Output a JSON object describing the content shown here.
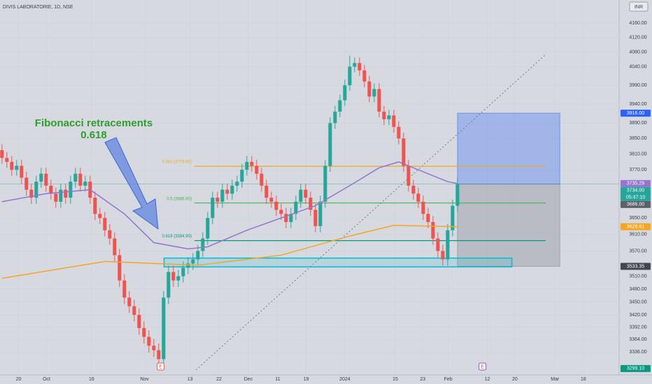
{
  "chart_data": {
    "type": "candlestick",
    "title": "DIVIS LABORATORIE, 1D, NSE",
    "currency": "INR",
    "annotation": [
      "Fibonacci retracements",
      "0.618"
    ],
    "annotation_color": "#2e9e2e",
    "up_color": "#26a69a",
    "down_color": "#ef5350",
    "log": true,
    "ylim": [
      3285,
      4225
    ],
    "xlim": [
      -0.4,
      126
    ],
    "yticks": [
      {
        "value": 4160,
        "label": "4160.00"
      },
      {
        "value": 4120,
        "label": "4120.00"
      },
      {
        "value": 4080,
        "label": "4080.00"
      },
      {
        "value": 4040,
        "label": "4040.00"
      },
      {
        "value": 3990,
        "label": "3990.00"
      },
      {
        "value": 3940,
        "label": "3940.00"
      },
      {
        "value": 3890,
        "label": "3890.00"
      },
      {
        "value": 3850,
        "label": "3850.00"
      },
      {
        "value": 3810,
        "label": "3810.00"
      },
      {
        "value": 3770,
        "label": "3770.00"
      },
      {
        "value": 3650,
        "label": "3650.00"
      },
      {
        "value": 3610,
        "label": "3610.00"
      },
      {
        "value": 3570,
        "label": "3570.00"
      },
      {
        "value": 3510,
        "label": "3510.00"
      },
      {
        "value": 3480,
        "label": "3480.00"
      },
      {
        "value": 3450,
        "label": "3450.00"
      },
      {
        "value": 3420,
        "label": "3420.00"
      },
      {
        "value": 3392,
        "label": "3392.00"
      },
      {
        "value": 3364,
        "label": "3364.00"
      },
      {
        "value": 3336,
        "label": "3336.00"
      }
    ],
    "xticks": [
      {
        "value": 3.4,
        "label": "20"
      },
      {
        "value": 9.1,
        "label": "Oct"
      },
      {
        "value": 18.3,
        "label": "16"
      },
      {
        "value": 29.1,
        "label": "Nov"
      },
      {
        "value": 38.4,
        "label": "13"
      },
      {
        "value": 44.3,
        "label": "22"
      },
      {
        "value": 50.3,
        "label": "Dec"
      },
      {
        "value": 56.3,
        "label": "11"
      },
      {
        "value": 62.1,
        "label": "19"
      },
      {
        "value": 70,
        "label": "2024"
      },
      {
        "value": 80.3,
        "label": "15"
      },
      {
        "value": 85.9,
        "label": "23"
      },
      {
        "value": 91.1,
        "label": "Feb"
      },
      {
        "value": 99.1,
        "label": "12"
      },
      {
        "value": 104.7,
        "label": "20"
      },
      {
        "value": 112.9,
        "label": "Mar"
      },
      {
        "value": 118.7,
        "label": "18"
      }
    ],
    "open": [
      3820,
      3800,
      3790,
      3770,
      3780,
      3750,
      3720,
      3700,
      3740,
      3760,
      3730,
      3710,
      3690,
      3720,
      3700,
      3740,
      3760,
      3730,
      3740,
      3700,
      3660,
      3650,
      3620,
      3600,
      3560,
      3500,
      3460,
      3440,
      3420,
      3390,
      3370,
      3350,
      3340,
      3320,
      3460,
      3520,
      3500,
      3510,
      3530,
      3540,
      3550,
      3570,
      3600,
      3650,
      3700,
      3690,
      3720,
      3710,
      3730,
      3740,
      3770,
      3790,
      3780,
      3760,
      3730,
      3700,
      3690,
      3670,
      3660,
      3640,
      3660,
      3690,
      3720,
      3700,
      3670,
      3630,
      3690,
      3780,
      3890,
      3920,
      3950,
      3990,
      4040,
      4050,
      4030,
      4000,
      3960,
      3980,
      3920,
      3900,
      3910,
      3880,
      3850,
      3780,
      3730,
      3710,
      3690,
      3660,
      3640,
      3600,
      3570,
      3550,
      3620,
      3680
    ],
    "high": [
      3835,
      3815,
      3805,
      3795,
      3795,
      3765,
      3735,
      3755,
      3775,
      3775,
      3745,
      3725,
      3735,
      3735,
      3755,
      3775,
      3775,
      3755,
      3755,
      3715,
      3675,
      3665,
      3635,
      3615,
      3575,
      3515,
      3475,
      3455,
      3435,
      3405,
      3385,
      3365,
      3355,
      3475,
      3535,
      3535,
      3525,
      3545,
      3555,
      3565,
      3585,
      3615,
      3665,
      3715,
      3715,
      3735,
      3735,
      3745,
      3755,
      3785,
      3805,
      3805,
      3795,
      3775,
      3745,
      3715,
      3705,
      3685,
      3675,
      3675,
      3705,
      3735,
      3735,
      3715,
      3685,
      3705,
      3795,
      3905,
      3935,
      3965,
      4005,
      4070,
      4065,
      4065,
      4045,
      4015,
      3995,
      3995,
      3935,
      3925,
      3925,
      3895,
      3865,
      3795,
      3745,
      3725,
      3705,
      3675,
      3655,
      3615,
      3585,
      3635,
      3695,
      3749
    ],
    "low": [
      3785,
      3775,
      3755,
      3755,
      3735,
      3705,
      3685,
      3685,
      3725,
      3715,
      3695,
      3675,
      3675,
      3685,
      3685,
      3725,
      3715,
      3715,
      3685,
      3645,
      3635,
      3605,
      3585,
      3545,
      3485,
      3445,
      3425,
      3405,
      3375,
      3355,
      3335,
      3325,
      3299,
      3305,
      3445,
      3485,
      3485,
      3495,
      3515,
      3525,
      3535,
      3555,
      3585,
      3635,
      3675,
      3675,
      3695,
      3695,
      3715,
      3725,
      3755,
      3765,
      3745,
      3715,
      3685,
      3675,
      3655,
      3645,
      3625,
      3625,
      3645,
      3675,
      3685,
      3655,
      3615,
      3615,
      3675,
      3765,
      3875,
      3905,
      3935,
      3975,
      4025,
      4015,
      3985,
      3945,
      3945,
      3905,
      3885,
      3885,
      3865,
      3835,
      3765,
      3715,
      3695,
      3675,
      3645,
      3625,
      3585,
      3555,
      3535,
      3535,
      3605,
      3665
    ],
    "close": [
      3800,
      3790,
      3770,
      3780,
      3750,
      3720,
      3700,
      3740,
      3760,
      3730,
      3710,
      3690,
      3720,
      3700,
      3740,
      3760,
      3730,
      3740,
      3700,
      3660,
      3650,
      3620,
      3600,
      3560,
      3500,
      3460,
      3440,
      3420,
      3390,
      3370,
      3350,
      3340,
      3320,
      3460,
      3520,
      3500,
      3510,
      3530,
      3540,
      3550,
      3570,
      3600,
      3650,
      3700,
      3690,
      3720,
      3710,
      3730,
      3740,
      3770,
      3790,
      3780,
      3760,
      3730,
      3700,
      3690,
      3670,
      3660,
      3640,
      3660,
      3690,
      3720,
      3700,
      3670,
      3630,
      3690,
      3780,
      3890,
      3920,
      3950,
      3990,
      4040,
      4050,
      4030,
      4000,
      3960,
      3980,
      3920,
      3900,
      3910,
      3880,
      3850,
      3780,
      3730,
      3710,
      3690,
      3660,
      3640,
      3600,
      3570,
      3550,
      3620,
      3680,
      3734
    ],
    "ma_lines": [
      {
        "color": "#9575cd",
        "x": [
          0,
          9,
          18,
          25,
          31,
          38,
          42,
          50,
          57,
          64,
          71,
          77,
          81,
          85,
          91,
          93
        ],
        "values": [
          3690,
          3710,
          3720,
          3660,
          3590,
          3575,
          3580,
          3620,
          3650,
          3680,
          3730,
          3775,
          3790,
          3770,
          3740,
          3735.29
        ]
      },
      {
        "color": "#f5a623",
        "x": [
          0,
          21,
          40,
          57,
          71,
          80,
          93
        ],
        "values": [
          3505,
          3545,
          3536,
          3560,
          3606,
          3632,
          3628.61
        ]
      }
    ],
    "fib_range": [
      39.3,
      111
    ],
    "fib_levels": [
      {
        "label": "0.382 (3778.90)",
        "value": 3778.9,
        "color": "#f5a623"
      },
      {
        "label": "0.5 (3686.90)",
        "value": 3686.9,
        "color": "#4caf50"
      },
      {
        "label": "0.618 (3594.90)",
        "value": 3594.9,
        "color": "#089981"
      }
    ],
    "zones": [
      {
        "range": [
          3734,
          3916
        ],
        "x_range": [
          93,
          113.9
        ],
        "color": "#2962ff"
      },
      {
        "range": [
          3533.35,
          3734
        ],
        "x_range": [
          93,
          113.9
        ],
        "color": "#787b86"
      },
      {
        "range": [
          3532,
          3553
        ],
        "x_range": [
          33.1,
          104.1
        ],
        "color": "#00bcd4"
      }
    ],
    "trend_line": {
      "x": [
        39.6,
        111
      ],
      "values": [
        3296,
        4073
      ],
      "color": "#787b86"
    },
    "price_labels": [
      {
        "value": 3916,
        "label": "3916.00",
        "color": "#2962ff"
      },
      {
        "value": 3735.29,
        "label": "3735.29",
        "color": "#9575cd"
      },
      {
        "value": 3734,
        "label": "3734.00",
        "color": "#26a69a",
        "countdown": "05:47:10"
      },
      {
        "value": 3686,
        "label": "3686.00",
        "color": "#5d606b"
      },
      {
        "value": 3628.61,
        "label": "3628.61",
        "color": "#f5a623"
      },
      {
        "value": 3533.35,
        "label": "3533.35",
        "color": "#434651"
      },
      {
        "value": 3299.1,
        "label": "3299.10",
        "color": "#089981"
      }
    ],
    "events": [
      {
        "x": 32.4,
        "label": "E",
        "color": "#ef5350"
      },
      {
        "x": 98.1,
        "label": "E",
        "color": "#ab47bc"
      }
    ]
  }
}
